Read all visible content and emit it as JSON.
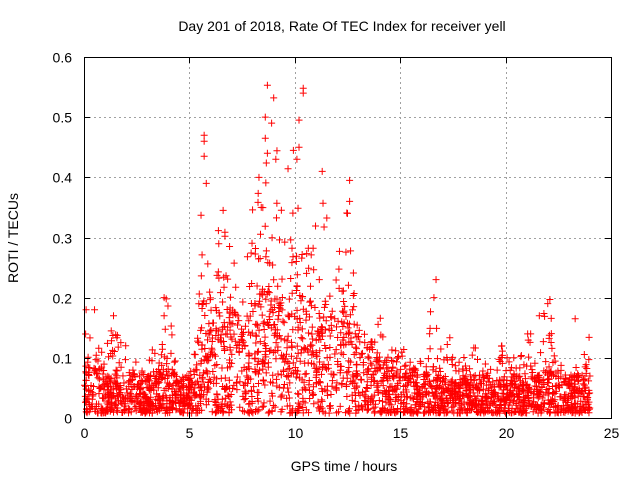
{
  "chart_data": {
    "type": "scatter",
    "title": "Day 201 of 2018, Rate Of TEC Index for receiver yell",
    "xlabel": "GPS time / hours",
    "ylabel": "ROTI / TECUs",
    "xlim": [
      0,
      25
    ],
    "ylim": [
      0,
      0.6
    ],
    "xticks": [
      0,
      5,
      10,
      15,
      20,
      25
    ],
    "yticks": [
      0,
      0.1,
      0.2,
      0.3,
      0.4,
      0.5,
      0.6
    ],
    "xtick_labels": [
      "0",
      "5",
      "10",
      "15",
      "20",
      "25"
    ],
    "ytick_labels": [
      "0",
      "0.1",
      "0.2",
      "0.3",
      "0.4",
      "0.5",
      "0.6"
    ],
    "grid": true,
    "marker": "+",
    "color": "#ff0000",
    "data_coverage_hours": [
      0,
      24
    ],
    "envelope": {
      "x": [
        0,
        0.5,
        1,
        1.5,
        2,
        2.5,
        3,
        3.5,
        4,
        4.5,
        5,
        5.4,
        5.6,
        6,
        6.5,
        7,
        7.5,
        8,
        8.5,
        9,
        9.5,
        10,
        10.5,
        11,
        11.5,
        12,
        12.5,
        13,
        13.5,
        14,
        14.5,
        15,
        15.5,
        16,
        16.5,
        17,
        17.5,
        18,
        18.5,
        19,
        19.5,
        20,
        20.5,
        21,
        21.5,
        22,
        22.5,
        23,
        23.5,
        24
      ],
      "upper": [
        0.14,
        0.15,
        0.12,
        0.17,
        0.12,
        0.1,
        0.11,
        0.12,
        0.2,
        0.08,
        0.07,
        0.2,
        0.44,
        0.3,
        0.34,
        0.3,
        0.26,
        0.35,
        0.42,
        0.55,
        0.4,
        0.54,
        0.38,
        0.37,
        0.37,
        0.34,
        0.36,
        0.2,
        0.17,
        0.18,
        0.14,
        0.12,
        0.12,
        0.1,
        0.22,
        0.12,
        0.14,
        0.1,
        0.13,
        0.15,
        0.14,
        0.12,
        0.1,
        0.15,
        0.13,
        0.2,
        0.1,
        0.09,
        0.1,
        0.14
      ],
      "typical": [
        0.05,
        0.05,
        0.04,
        0.05,
        0.04,
        0.04,
        0.04,
        0.04,
        0.05,
        0.04,
        0.04,
        0.08,
        0.12,
        0.1,
        0.11,
        0.11,
        0.1,
        0.12,
        0.13,
        0.14,
        0.13,
        0.14,
        0.12,
        0.12,
        0.12,
        0.11,
        0.11,
        0.09,
        0.08,
        0.07,
        0.06,
        0.05,
        0.05,
        0.04,
        0.05,
        0.04,
        0.04,
        0.04,
        0.04,
        0.04,
        0.04,
        0.04,
        0.04,
        0.04,
        0.04,
        0.05,
        0.04,
        0.04,
        0.04,
        0.04
      ]
    },
    "notable_peaks": [
      {
        "x": 8.7,
        "y": 0.553
      },
      {
        "x": 10.4,
        "y": 0.548
      },
      {
        "x": 10.4,
        "y": 0.54
      },
      {
        "x": 8.6,
        "y": 0.5
      },
      {
        "x": 10.2,
        "y": 0.495
      },
      {
        "x": 8.9,
        "y": 0.49
      },
      {
        "x": 5.7,
        "y": 0.47
      },
      {
        "x": 5.7,
        "y": 0.46
      },
      {
        "x": 8.6,
        "y": 0.465
      },
      {
        "x": 8.7,
        "y": 0.44
      },
      {
        "x": 10.2,
        "y": 0.45
      },
      {
        "x": 5.7,
        "y": 0.435
      },
      {
        "x": 9.1,
        "y": 0.43
      },
      {
        "x": 10.1,
        "y": 0.43
      },
      {
        "x": 11.3,
        "y": 0.41
      },
      {
        "x": 12.6,
        "y": 0.395
      },
      {
        "x": 5.8,
        "y": 0.39
      },
      {
        "x": 8.3,
        "y": 0.4
      },
      {
        "x": 12.6,
        "y": 0.36
      },
      {
        "x": 12.5,
        "y": 0.34
      },
      {
        "x": 6.6,
        "y": 0.345
      },
      {
        "x": 16.7,
        "y": 0.23
      },
      {
        "x": 16.6,
        "y": 0.2
      },
      {
        "x": 3.8,
        "y": 0.2
      },
      {
        "x": 3.9,
        "y": 0.198
      },
      {
        "x": 22.1,
        "y": 0.197
      },
      {
        "x": 22.0,
        "y": 0.19
      },
      {
        "x": 0.5,
        "y": 0.18
      },
      {
        "x": 0.1,
        "y": 0.18
      },
      {
        "x": 1.4,
        "y": 0.17
      },
      {
        "x": 3.8,
        "y": 0.17
      },
      {
        "x": 21.6,
        "y": 0.17
      },
      {
        "x": 23.3,
        "y": 0.165
      }
    ]
  }
}
